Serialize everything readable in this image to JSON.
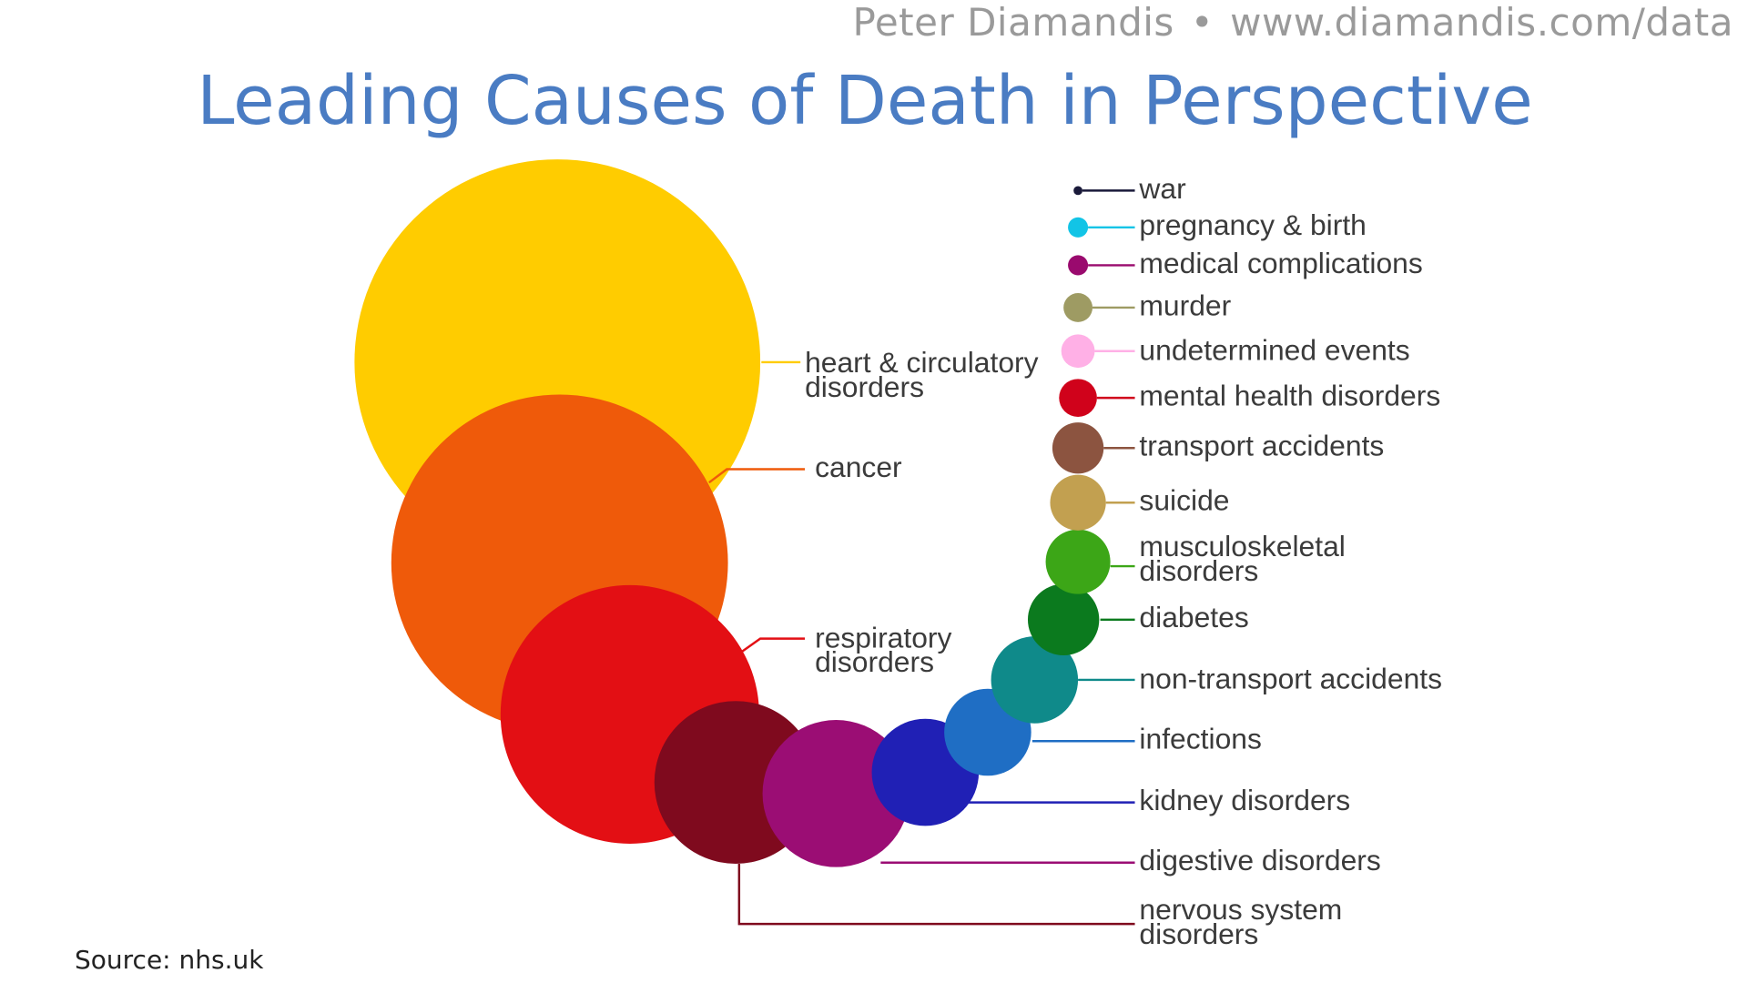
{
  "header": {
    "author": "Peter Diamandis",
    "separator": "•",
    "url": "www.diamandis.com/data"
  },
  "title": "Leading Causes of Death in Perspective",
  "source": "Source: nhs.uk",
  "causes": [
    {
      "label": [
        "heart & circulatory",
        "disorders"
      ],
      "color": "#ffcc00"
    },
    {
      "label": [
        "cancer"
      ],
      "color": "#ef5a0a"
    },
    {
      "label": [
        "respiratory",
        "disorders"
      ],
      "color": "#e30f14"
    },
    {
      "label": [
        "nervous system",
        "disorders"
      ],
      "color": "#7f0a1e"
    },
    {
      "label": [
        "digestive disorders"
      ],
      "color": "#9b0d74"
    },
    {
      "label": [
        "kidney disorders"
      ],
      "color": "#2020b5"
    },
    {
      "label": [
        "infections"
      ],
      "color": "#1f6ec4"
    },
    {
      "label": [
        "non-transport accidents"
      ],
      "color": "#0f8a8a"
    },
    {
      "label": [
        "diabetes"
      ],
      "color": "#0b7a1e"
    },
    {
      "label": [
        "musculoskeletal",
        "disorders"
      ],
      "color": "#3ca617"
    },
    {
      "label": [
        "suicide"
      ],
      "color": "#c2a050"
    },
    {
      "label": [
        "transport accidents"
      ],
      "color": "#8c5440"
    },
    {
      "label": [
        "mental health disorders"
      ],
      "color": "#d0021b"
    },
    {
      "label": [
        "undetermined events"
      ],
      "color": "#ffb0e6"
    },
    {
      "label": [
        "murder"
      ],
      "color": "#9e9b63"
    },
    {
      "label": [
        "medical complications"
      ],
      "color": "#9a0a6e"
    },
    {
      "label": [
        "pregnancy & birth"
      ],
      "color": "#12c4e6"
    },
    {
      "label": [
        "war"
      ],
      "color": "#1a1a3a"
    }
  ]
}
